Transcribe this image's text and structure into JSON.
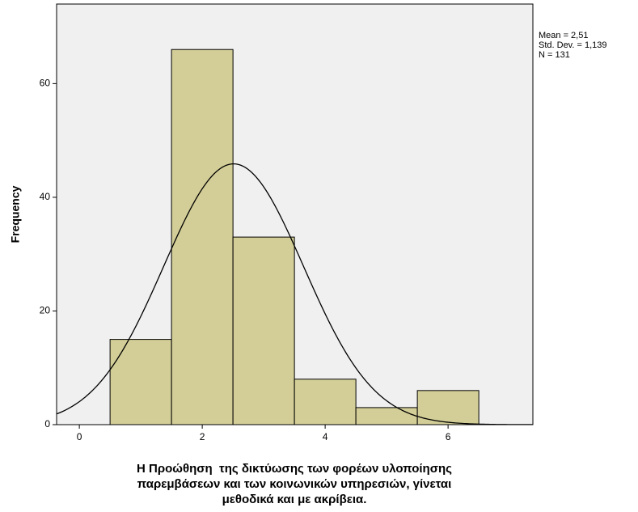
{
  "chart_data": {
    "type": "histogram",
    "bins": [
      0.5,
      1.5,
      2.5,
      3.5,
      4.5,
      5.5,
      6.5
    ],
    "values": [
      15,
      66,
      33,
      8,
      3,
      6
    ],
    "color": "#d3ce97",
    "xlim": [
      -0.37,
      7.38
    ],
    "xticks": [
      0,
      2,
      4,
      6
    ],
    "ylim": [
      0,
      74
    ],
    "yticks": [
      0,
      20,
      40,
      60
    ],
    "ylabel": "Frequency",
    "xlabel": [
      "Η Προώθηση  της δικτύωσης των φορέων υλοποίησης",
      "παρεμβάσεων και των κοινωνικών υπηρεσιών, γίνεται",
      "μεθοδικά και με ακρίβεια."
    ],
    "annotations": [
      "Mean = 2,51",
      "Std. Dev. = 1,139",
      "N = 131"
    ],
    "normal_curve": {
      "mean": 2.51,
      "std_dev": 1.139,
      "n": 131
    }
  }
}
